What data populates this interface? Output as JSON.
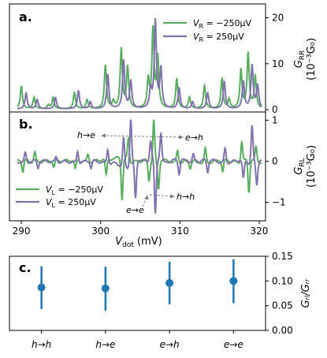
{
  "colors": {
    "green": "#5aae61",
    "purple": "#8073ac",
    "blue": "#1f77b4",
    "axis": "#000000",
    "arrow": "#777777"
  },
  "panel_a": {
    "letter": "a.",
    "ylabel_main": "G",
    "ylabel_sub": "RR",
    "ylabel_units": "(10⁻³G₀)",
    "legend": [
      {
        "label_var": "V",
        "label_sub": "R",
        "label_val": " = −250µV",
        "color": "green"
      },
      {
        "label_var": "V",
        "label_sub": "R",
        "label_val": " = 250µV",
        "color": "purple"
      }
    ]
  },
  "panel_b": {
    "letter": "b.",
    "ylabel_main": "G",
    "ylabel_sub": "RL",
    "ylabel_units": "(10⁻³G₀)",
    "legend": [
      {
        "label_var": "V",
        "label_sub": "L",
        "label_val": " = −250µV",
        "color": "green"
      },
      {
        "label_var": "V",
        "label_sub": "L",
        "label_val": " = 250µV",
        "color": "purple"
      }
    ],
    "annotations": [
      "h→e",
      "e→h",
      "h→h",
      "e→e"
    ],
    "xlabel_main": "V",
    "xlabel_sub": "dot",
    "xlabel_units": " (mV)"
  },
  "panel_c": {
    "letter": "c.",
    "ylabel": "Gᵣₗ/Gᵣᵣ"
  },
  "chart_data": [
    {
      "type": "line",
      "panel": "a",
      "xlim": [
        288.5,
        320.8
      ],
      "ylim": [
        -0.5,
        23
      ],
      "yticks": [
        0,
        10,
        20
      ],
      "series": [
        {
          "name": "V_R = -250µV",
          "color": "green",
          "peaks": [
            [
              290.0,
              5.0
            ],
            [
              291.6,
              2.5
            ],
            [
              293.4,
              0.8
            ],
            [
              294.0,
              2.5
            ],
            [
              296.7,
              3.5
            ],
            [
              298.3,
              2.0
            ],
            [
              300.6,
              9.5
            ],
            [
              301.6,
              1.5
            ],
            [
              302.6,
              13.0
            ],
            [
              303.4,
              9.0
            ],
            [
              306.0,
              6.0
            ],
            [
              306.6,
              17.0
            ],
            [
              307.2,
              11.0
            ],
            [
              309.6,
              6.5
            ],
            [
              311.2,
              2.5
            ],
            [
              313.1,
              5.0
            ],
            [
              315.3,
              6.5
            ],
            [
              316.2,
              2.0
            ],
            [
              317.7,
              8.5
            ],
            [
              318.6,
              12.0
            ],
            [
              319.5,
              7.0
            ]
          ]
        },
        {
          "name": "V_R = 250µV",
          "color": "purple",
          "peaks": [
            [
              290.6,
              3.5
            ],
            [
              292.0,
              2.0
            ],
            [
              294.3,
              2.5
            ],
            [
              297.2,
              4.0
            ],
            [
              298.7,
              1.5
            ],
            [
              300.9,
              7.5
            ],
            [
              302.9,
              10.5
            ],
            [
              303.8,
              6.0
            ],
            [
              306.3,
              4.0
            ],
            [
              306.9,
              19.0
            ],
            [
              307.6,
              8.5
            ],
            [
              309.9,
              4.5
            ],
            [
              311.6,
              1.5
            ],
            [
              313.5,
              3.5
            ],
            [
              315.6,
              6.0
            ],
            [
              318.0,
              6.0
            ],
            [
              319.1,
              9.5
            ],
            [
              319.8,
              5.0
            ]
          ]
        }
      ]
    },
    {
      "type": "line",
      "panel": "b",
      "xlim": [
        288.5,
        320.8
      ],
      "ylim": [
        -1.45,
        1.2
      ],
      "xticks": [
        290,
        300,
        310,
        320
      ],
      "yticks": [
        -1,
        0,
        1
      ],
      "series": [
        {
          "name": "V_L = -250µV",
          "color": "green",
          "features": [
            [
              290.2,
              -0.25
            ],
            [
              291.7,
              0.2
            ],
            [
              294.1,
              -0.15
            ],
            [
              296.8,
              -0.2
            ],
            [
              298.4,
              0.15
            ],
            [
              300.7,
              -0.35
            ],
            [
              302.7,
              -0.9
            ],
            [
              303.5,
              0.5
            ],
            [
              306.1,
              -0.4
            ],
            [
              306.7,
              0.9
            ],
            [
              307.3,
              -0.6
            ],
            [
              309.7,
              0.25
            ],
            [
              311.3,
              -0.15
            ],
            [
              313.2,
              0.3
            ],
            [
              315.4,
              -0.25
            ],
            [
              317.8,
              0.45
            ],
            [
              318.7,
              -0.7
            ],
            [
              319.6,
              0.3
            ]
          ]
        },
        {
          "name": "V_L = 250µV",
          "color": "purple",
          "features": [
            [
              290.5,
              0.2
            ],
            [
              292.1,
              -0.15
            ],
            [
              294.4,
              0.1
            ],
            [
              297.1,
              0.25
            ],
            [
              298.8,
              -0.15
            ],
            [
              300.9,
              0.3
            ],
            [
              302.9,
              0.6
            ],
            [
              303.8,
              1.0
            ],
            [
              304.4,
              -0.8
            ],
            [
              306.3,
              0.4
            ],
            [
              306.9,
              -1.2
            ],
            [
              307.6,
              0.6
            ],
            [
              309.9,
              -0.3
            ],
            [
              311.7,
              0.15
            ],
            [
              313.5,
              -0.25
            ],
            [
              315.7,
              0.3
            ],
            [
              318.0,
              -0.4
            ],
            [
              319.1,
              0.8
            ],
            [
              319.7,
              -0.5
            ]
          ]
        }
      ]
    },
    {
      "type": "scatter",
      "panel": "c",
      "categories": [
        "h→h",
        "h→e",
        "e→h",
        "e→e"
      ],
      "values": [
        0.087,
        0.085,
        0.096,
        0.1
      ],
      "error": [
        [
          0.043,
          0.13
        ],
        [
          0.04,
          0.129
        ],
        [
          0.053,
          0.139
        ],
        [
          0.055,
          0.144
        ]
      ],
      "ylim": [
        0.0,
        0.15
      ],
      "yticks": [
        0.0,
        0.05,
        0.1,
        0.15
      ],
      "color": "blue"
    }
  ]
}
